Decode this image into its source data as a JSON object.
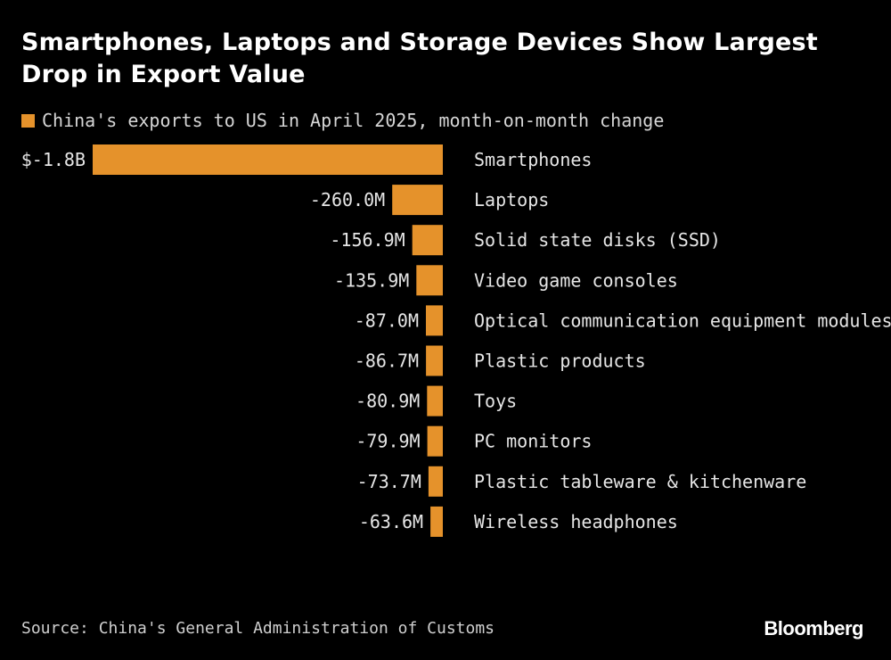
{
  "colors": {
    "background": "#000000",
    "bar": "#e5922b",
    "text": "#e6e6e6"
  },
  "chart_data": {
    "type": "bar",
    "orientation": "horizontal",
    "title": "Smartphones, Laptops and Storage Devices Show Largest Drop in Export Value",
    "legend": "China's exports to US in April 2025, month-on-month change",
    "unit": "USD",
    "categories": [
      "Smartphones",
      "Laptops",
      "Solid state disks (SSD)",
      "Video game consoles",
      "Optical communication equipment modules",
      "Plastic products",
      "Toys",
      "PC monitors",
      "Plastic tableware & kitchenware",
      "Wireless headphones"
    ],
    "values": [
      -1800000000,
      -260000000,
      -156900000,
      -135900000,
      -87000000,
      -86700000,
      -80900000,
      -79900000,
      -73700000,
      -63600000
    ],
    "value_labels": [
      "$-1.8B",
      "-260.0M",
      "-156.9M",
      "-135.9M",
      "-87.0M",
      "-86.7M",
      "-80.9M",
      "-79.9M",
      "-73.7M",
      "-63.6M"
    ],
    "grid": false,
    "legend_position": "top-left"
  },
  "footer": {
    "source": "Source: China's General Administration of Customs",
    "brand": "Bloomberg"
  }
}
